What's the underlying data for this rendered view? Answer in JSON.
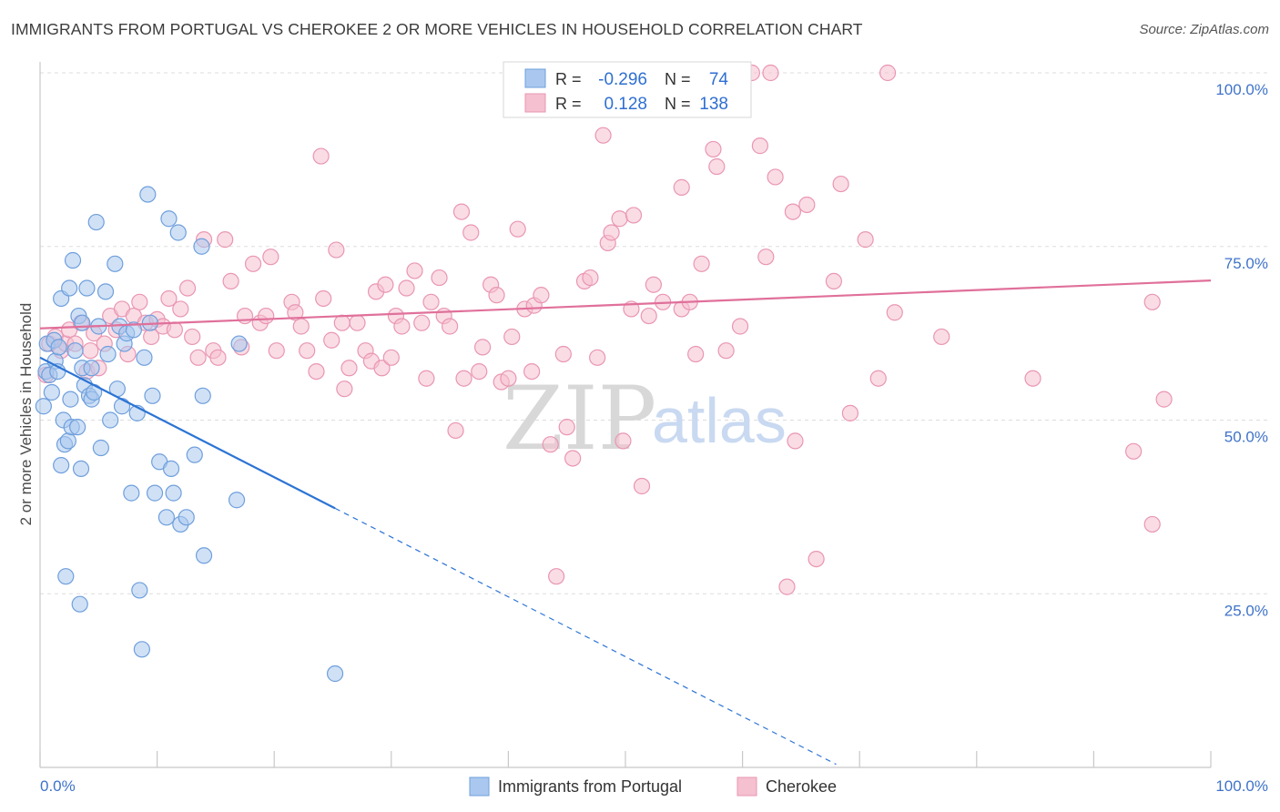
{
  "title": "IMMIGRANTS FROM PORTUGAL VS CHEROKEE 2 OR MORE VEHICLES IN HOUSEHOLD CORRELATION CHART",
  "source": "Source: ZipAtlas.com",
  "watermark": {
    "part1": "ZIP",
    "part2": "atlas"
  },
  "legend": {
    "rows": [
      {
        "r_label": "R =",
        "r_value": "-0.296",
        "n_label": "N =",
        "n_value": "74"
      },
      {
        "r_label": "R =",
        "r_value": "0.128",
        "n_label": "N =",
        "n_value": "138"
      }
    ]
  },
  "bottom_legend": [
    "Immigrants from Portugal",
    "Cherokee"
  ],
  "colors": {
    "blue_fill": "#aac8ef",
    "blue_stroke": "#6f9fdc",
    "blue_line": "#2c74d4",
    "pink_fill": "#f5c0d0",
    "pink_stroke": "#e996b2",
    "pink_line": "#e0709a",
    "tick_text": "#3f73c9",
    "grid": "#dddddd"
  },
  "chart_data": {
    "type": "scatter",
    "title": "IMMIGRANTS FROM PORTUGAL VS CHEROKEE 2 OR MORE VEHICLES IN HOUSEHOLD CORRELATION CHART",
    "xlabel": "",
    "ylabel": "2 or more Vehicles in Household",
    "xlim": [
      0,
      100
    ],
    "ylim": [
      0,
      100
    ],
    "x_tick_labels": [
      "0.0%",
      "100.0%"
    ],
    "y_tick_labels": [
      "25.0%",
      "50.0%",
      "75.0%",
      "100.0%"
    ],
    "y_ticks": [
      25,
      50,
      75,
      100
    ],
    "grid": true,
    "legend_position": "top-center",
    "series": [
      {
        "name": "Immigrants from Portugal",
        "r": -0.296,
        "n": 74,
        "trend": {
          "x0": 0,
          "y0": 59.0,
          "x1": 25.2,
          "y1": 37.3,
          "dash_to_x": 68
        },
        "points": [
          [
            0.3,
            52
          ],
          [
            0.5,
            57
          ],
          [
            0.6,
            61
          ],
          [
            0.8,
            56.5
          ],
          [
            1.0,
            54
          ],
          [
            1.2,
            61.5
          ],
          [
            1.3,
            58.5
          ],
          [
            1.5,
            57
          ],
          [
            1.6,
            60.5
          ],
          [
            1.8,
            67.5
          ],
          [
            1.8,
            43.5
          ],
          [
            2.0,
            50
          ],
          [
            2.1,
            46.5
          ],
          [
            2.2,
            27.5
          ],
          [
            2.4,
            47
          ],
          [
            2.5,
            69
          ],
          [
            2.6,
            53
          ],
          [
            2.7,
            49
          ],
          [
            2.8,
            73
          ],
          [
            3.0,
            60
          ],
          [
            3.2,
            49
          ],
          [
            3.3,
            65
          ],
          [
            3.4,
            23.5
          ],
          [
            3.5,
            43
          ],
          [
            3.6,
            64
          ],
          [
            3.6,
            57.5
          ],
          [
            3.8,
            55
          ],
          [
            4.0,
            69
          ],
          [
            4.2,
            53.5
          ],
          [
            4.4,
            53
          ],
          [
            4.4,
            57.5
          ],
          [
            4.6,
            54
          ],
          [
            4.8,
            78.5
          ],
          [
            5.0,
            63.5
          ],
          [
            5.2,
            46
          ],
          [
            5.6,
            68.5
          ],
          [
            5.8,
            59.5
          ],
          [
            6.0,
            50
          ],
          [
            6.4,
            72.5
          ],
          [
            6.6,
            54.5
          ],
          [
            6.8,
            63.5
          ],
          [
            7.0,
            52
          ],
          [
            7.2,
            61
          ],
          [
            7.4,
            62.5
          ],
          [
            7.8,
            39.5
          ],
          [
            8.0,
            63
          ],
          [
            8.3,
            51
          ],
          [
            8.5,
            25.5
          ],
          [
            8.7,
            17
          ],
          [
            8.9,
            59
          ],
          [
            9.2,
            82.5
          ],
          [
            9.4,
            64
          ],
          [
            9.6,
            53.5
          ],
          [
            9.8,
            39.5
          ],
          [
            10.2,
            44
          ],
          [
            10.8,
            36
          ],
          [
            11.0,
            79
          ],
          [
            11.2,
            43
          ],
          [
            11.4,
            39.5
          ],
          [
            11.8,
            77
          ],
          [
            12.0,
            35
          ],
          [
            12.5,
            36
          ],
          [
            13.2,
            45
          ],
          [
            13.8,
            75
          ],
          [
            13.9,
            53.5
          ],
          [
            14.0,
            30.5
          ],
          [
            16.8,
            38.5
          ],
          [
            17.0,
            61
          ],
          [
            25.2,
            13.5
          ]
        ]
      },
      {
        "name": "Cherokee",
        "r": 0.128,
        "n": 138,
        "trend": {
          "x0": 0,
          "y0": 63.2,
          "x1": 100,
          "y1": 70.1
        },
        "points": [
          [
            0.5,
            56.5
          ],
          [
            0.8,
            61
          ],
          [
            1.3,
            62
          ],
          [
            1.8,
            60
          ],
          [
            2.2,
            61
          ],
          [
            2.5,
            63
          ],
          [
            3.0,
            61
          ],
          [
            3.5,
            64
          ],
          [
            4.0,
            57
          ],
          [
            4.3,
            60
          ],
          [
            4.6,
            62.5
          ],
          [
            5.0,
            57.5
          ],
          [
            5.5,
            61
          ],
          [
            6.0,
            65
          ],
          [
            6.5,
            63
          ],
          [
            7.0,
            66
          ],
          [
            7.5,
            59.5
          ],
          [
            8.0,
            65
          ],
          [
            8.5,
            67
          ],
          [
            9.0,
            64
          ],
          [
            9.5,
            62
          ],
          [
            10.0,
            64.5
          ],
          [
            10.5,
            63.5
          ],
          [
            11.0,
            67.5
          ],
          [
            11.5,
            63
          ],
          [
            12.0,
            66
          ],
          [
            12.6,
            69
          ],
          [
            13.0,
            62
          ],
          [
            13.5,
            59
          ],
          [
            14.0,
            76
          ],
          [
            14.8,
            60
          ],
          [
            15.2,
            59
          ],
          [
            15.8,
            76
          ],
          [
            16.3,
            70
          ],
          [
            17.2,
            60.5
          ],
          [
            17.5,
            65
          ],
          [
            18.2,
            72.5
          ],
          [
            18.8,
            64
          ],
          [
            19.3,
            65
          ],
          [
            19.7,
            73.5
          ],
          [
            20.2,
            60
          ],
          [
            21.5,
            67
          ],
          [
            21.8,
            65.5
          ],
          [
            22.3,
            63.5
          ],
          [
            22.8,
            60
          ],
          [
            23.6,
            57
          ],
          [
            24.0,
            88
          ],
          [
            24.2,
            67.5
          ],
          [
            24.9,
            61.5
          ],
          [
            25.3,
            74.5
          ],
          [
            25.8,
            64
          ],
          [
            26.0,
            54.5
          ],
          [
            26.4,
            57.5
          ],
          [
            27.1,
            64
          ],
          [
            27.8,
            60
          ],
          [
            28.3,
            58.5
          ],
          [
            28.7,
            68.5
          ],
          [
            29.2,
            57.5
          ],
          [
            29.5,
            69.5
          ],
          [
            30.0,
            59
          ],
          [
            30.4,
            65
          ],
          [
            30.9,
            63.5
          ],
          [
            31.3,
            69
          ],
          [
            32.0,
            71.5
          ],
          [
            32.6,
            64
          ],
          [
            33.0,
            56
          ],
          [
            33.4,
            67
          ],
          [
            34.1,
            70.5
          ],
          [
            34.5,
            65
          ],
          [
            35.0,
            63.5
          ],
          [
            35.5,
            48.5
          ],
          [
            36.0,
            80
          ],
          [
            36.2,
            56
          ],
          [
            36.8,
            77
          ],
          [
            37.5,
            57
          ],
          [
            37.8,
            60.5
          ],
          [
            38.5,
            69.5
          ],
          [
            39.0,
            68
          ],
          [
            39.4,
            55.5
          ],
          [
            40.0,
            56
          ],
          [
            40.3,
            62
          ],
          [
            40.8,
            77.5
          ],
          [
            41.4,
            66
          ],
          [
            42.0,
            57
          ],
          [
            42.2,
            66.5
          ],
          [
            42.8,
            68
          ],
          [
            43.6,
            46.5
          ],
          [
            44.1,
            27.5
          ],
          [
            44.7,
            59.5
          ],
          [
            45.0,
            49
          ],
          [
            45.5,
            44.5
          ],
          [
            46.5,
            70
          ],
          [
            47.0,
            70.5
          ],
          [
            47.6,
            59
          ],
          [
            48.1,
            91
          ],
          [
            48.5,
            75.5
          ],
          [
            48.8,
            77
          ],
          [
            49.5,
            79
          ],
          [
            49.8,
            47
          ],
          [
            50.5,
            66
          ],
          [
            50.7,
            79.5
          ],
          [
            51.4,
            40.5
          ],
          [
            52.0,
            65
          ],
          [
            52.4,
            69.5
          ],
          [
            53.2,
            67
          ],
          [
            54.8,
            83.5
          ],
          [
            54.8,
            66
          ],
          [
            55.5,
            67
          ],
          [
            56.0,
            59.5
          ],
          [
            56.5,
            72.5
          ],
          [
            57.5,
            89
          ],
          [
            57.8,
            86.5
          ],
          [
            58.6,
            60
          ],
          [
            59.8,
            63.5
          ],
          [
            60.8,
            100
          ],
          [
            61.5,
            89.5
          ],
          [
            62.0,
            73.5
          ],
          [
            62.4,
            100
          ],
          [
            62.8,
            85
          ],
          [
            63.8,
            26
          ],
          [
            64.3,
            80
          ],
          [
            64.5,
            47
          ],
          [
            65.5,
            81
          ],
          [
            66.3,
            30
          ],
          [
            67.8,
            70
          ],
          [
            68.4,
            84
          ],
          [
            69.2,
            51
          ],
          [
            70.5,
            76
          ],
          [
            71.6,
            56
          ],
          [
            72.4,
            100
          ],
          [
            73.0,
            65.5
          ],
          [
            77.0,
            62
          ],
          [
            84.8,
            56
          ],
          [
            95.0,
            35
          ],
          [
            93.4,
            45.5
          ],
          [
            96.0,
            53
          ],
          [
            95.0,
            67
          ]
        ]
      }
    ]
  }
}
